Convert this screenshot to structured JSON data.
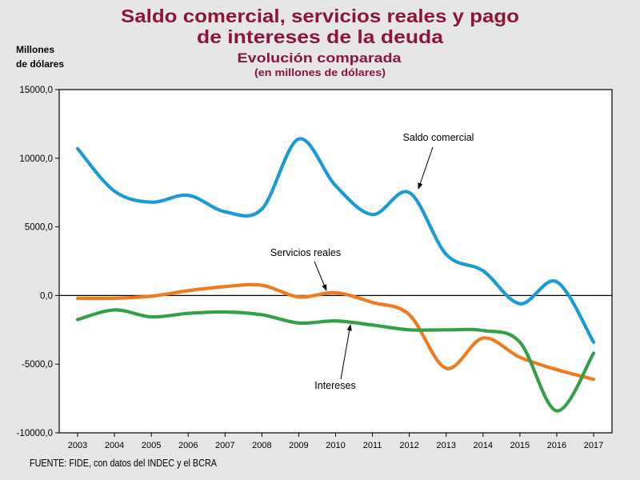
{
  "colors": {
    "background": "#e6e6e6",
    "title": "#8e1538",
    "axis": "#000000",
    "plot_background": "#ffffff"
  },
  "chart_data": {
    "type": "line",
    "title_lines": [
      "Saldo comercial, servicios reales y pago",
      "de intereses de la deuda"
    ],
    "subtitle": "Evolución comparada",
    "unit_note": "(en millones de dólares)",
    "ylabel_lines": [
      "Millones",
      "de dólares"
    ],
    "categories": [
      "2003",
      "2004",
      "2005",
      "2006",
      "2007",
      "2008",
      "2009",
      "2010",
      "2011",
      "2012",
      "2013",
      "2014",
      "2015",
      "2016",
      "2017"
    ],
    "ylim": [
      -10000,
      15000
    ],
    "yticks": [
      15000,
      10000,
      5000,
      0,
      -5000,
      -10000
    ],
    "ytick_labels": [
      "15000,0",
      "10000,0",
      "5000,0",
      "0,0",
      "-5000,0",
      "-10000,0"
    ],
    "series": [
      {
        "name": "Saldo comercial",
        "color": "#1a9bd7",
        "values": [
          10700,
          7600,
          6800,
          7300,
          6100,
          6300,
          11400,
          8000,
          5900,
          7500,
          3000,
          1800,
          -600,
          1000,
          -3400
        ]
      },
      {
        "name": "Servicios reales",
        "color": "#f07b1e",
        "values": [
          -200,
          -200,
          -50,
          350,
          650,
          750,
          -100,
          200,
          -500,
          -1400,
          -5300,
          -3100,
          -4500,
          -5400,
          -6100
        ]
      },
      {
        "name": "Intereses",
        "color": "#33a047",
        "values": [
          -1750,
          -1050,
          -1550,
          -1300,
          -1200,
          -1400,
          -2000,
          -1850,
          -2150,
          -2500,
          -2500,
          -2550,
          -3400,
          -8400,
          -4200
        ]
      }
    ],
    "source": "FUENTE: FIDE, con datos del INDEC y el BCRA"
  }
}
